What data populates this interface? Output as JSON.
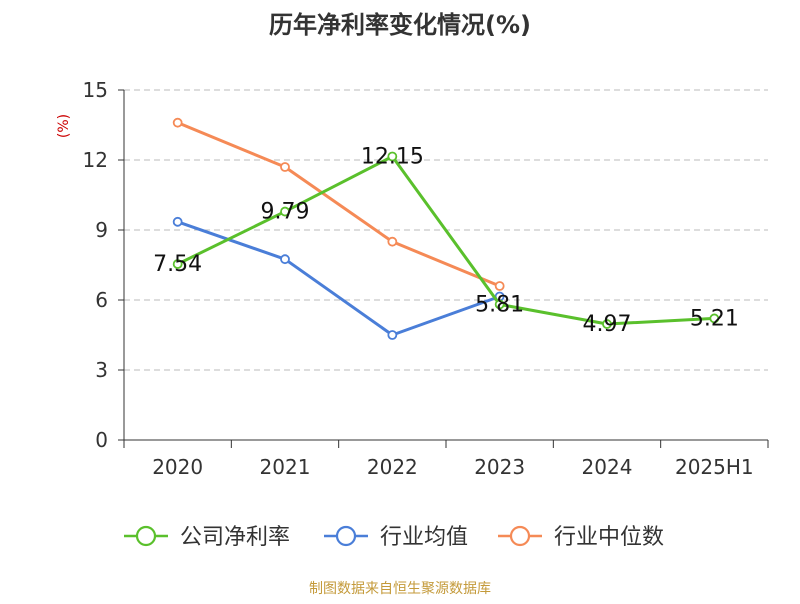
{
  "source": "制图数据来自恒生聚源数据库",
  "colors": {
    "title": "#333333",
    "axis": "#333333",
    "grid": "#bbbbbb",
    "unit": "#cc0000",
    "source": "#c49a3a"
  },
  "chart_data": {
    "type": "line",
    "title": "历年净利率变化情况(%)",
    "ylabel": "(%)",
    "xlabel": "",
    "categories": [
      "2020",
      "2021",
      "2022",
      "2023",
      "2024",
      "2025H1"
    ],
    "ylim": [
      0,
      15
    ],
    "yticks": [
      0,
      3,
      6,
      9,
      12,
      15
    ],
    "grid": true,
    "legend_position": "bottom",
    "series": [
      {
        "name": "公司净利率",
        "color": "#5ac02c",
        "values": [
          7.54,
          9.79,
          12.15,
          5.81,
          4.97,
          5.21
        ],
        "labels": [
          "7.54",
          "9.79",
          "12.15",
          "5.81",
          "4.97",
          "5.21"
        ],
        "show_labels": true
      },
      {
        "name": "行业均值",
        "color": "#4a7ed8",
        "values": [
          9.35,
          7.75,
          4.5,
          6.15,
          null,
          null
        ],
        "show_labels": false
      },
      {
        "name": "行业中位数",
        "color": "#f58a56",
        "values": [
          13.6,
          11.7,
          8.5,
          6.6,
          null,
          null
        ],
        "show_labels": false
      }
    ]
  }
}
